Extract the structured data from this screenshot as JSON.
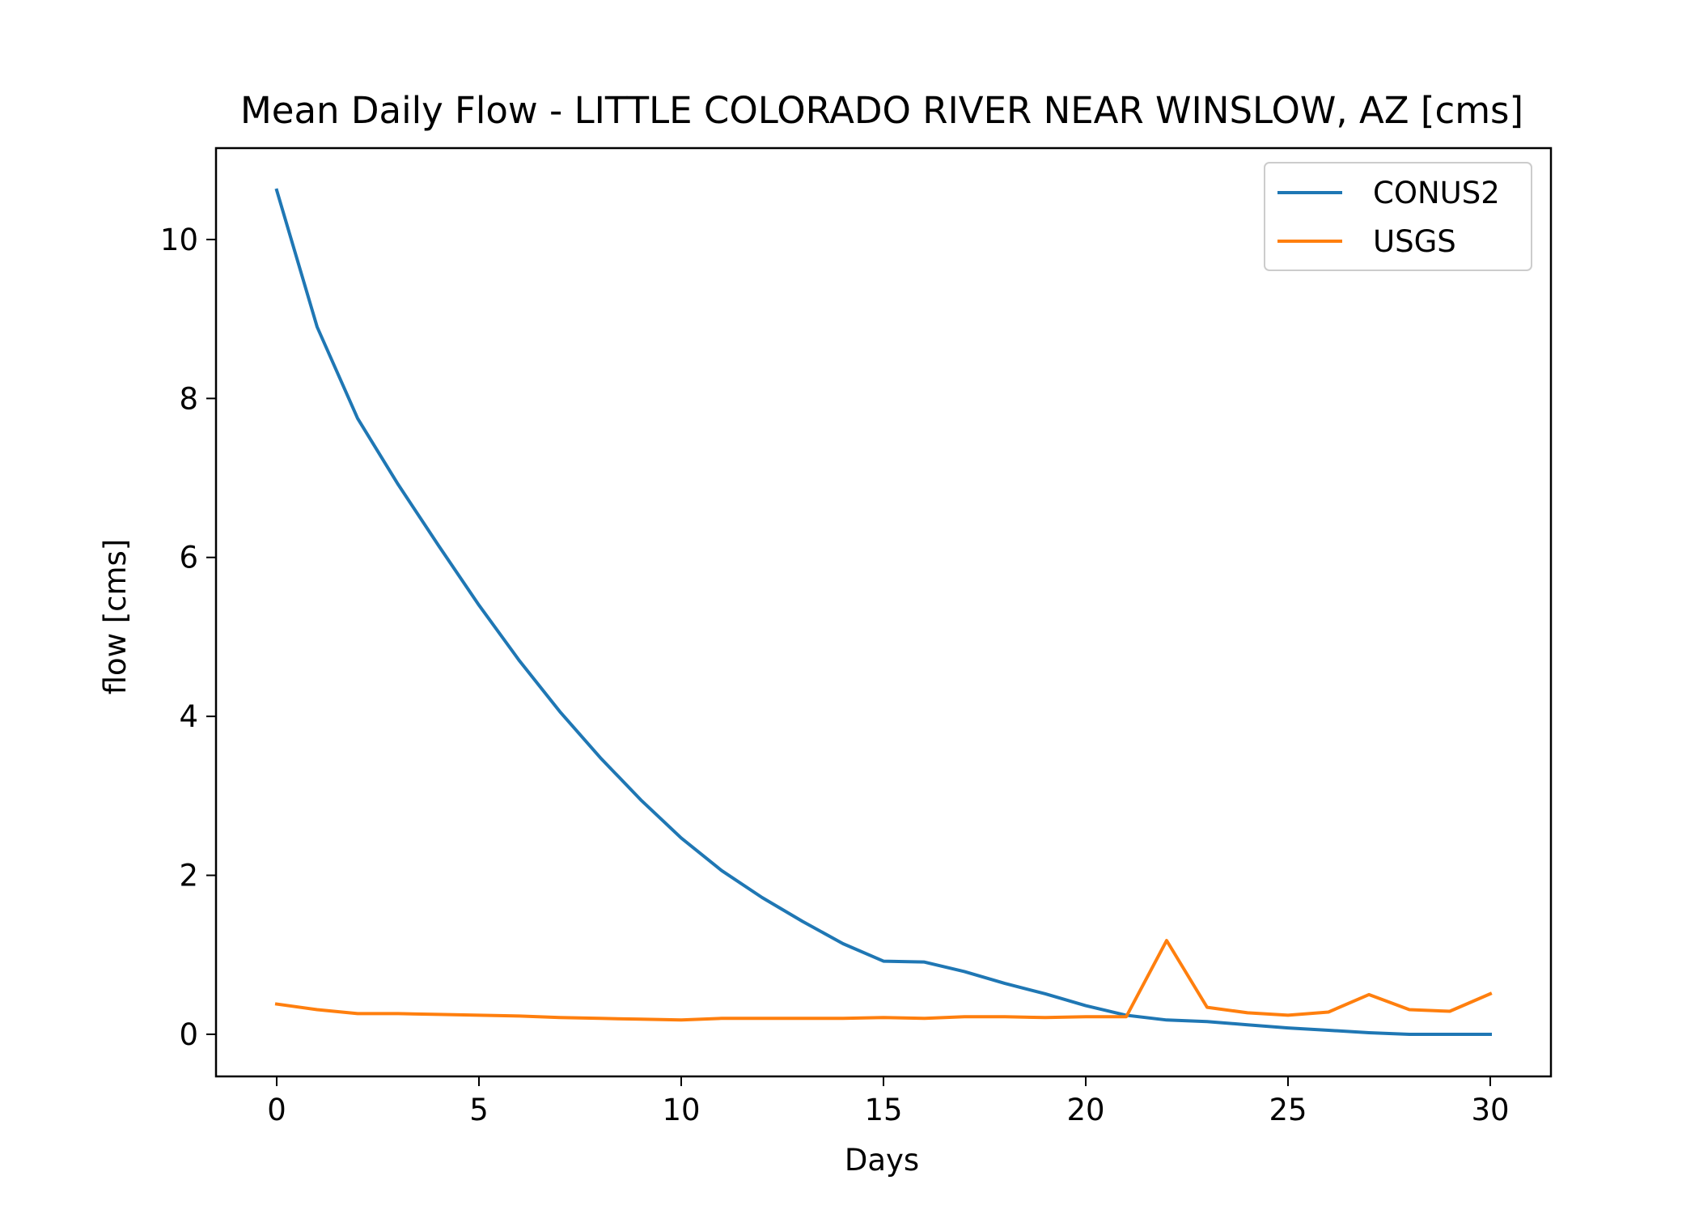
{
  "chart_data": {
    "type": "line",
    "title": "Mean Daily Flow - LITTLE COLORADO RIVER NEAR WINSLOW, AZ [cms]",
    "xlabel": "Days",
    "ylabel": "flow [cms]",
    "xlim": [
      -1.5,
      31.5
    ],
    "ylim": [
      -0.53,
      11.15
    ],
    "xticks": [
      0,
      5,
      10,
      15,
      20,
      25,
      30
    ],
    "yticks": [
      0,
      2,
      4,
      6,
      8,
      10
    ],
    "grid": false,
    "legend_position": "upper right",
    "x": [
      0,
      1,
      2,
      3,
      4,
      5,
      6,
      7,
      8,
      9,
      10,
      11,
      12,
      13,
      14,
      15,
      16,
      17,
      18,
      19,
      20,
      21,
      22,
      23,
      24,
      25,
      26,
      27,
      28,
      29,
      30
    ],
    "series": [
      {
        "name": "CONUS2",
        "color": "#1f77b4",
        "values": [
          10.62,
          8.9,
          7.75,
          6.92,
          6.15,
          5.4,
          4.7,
          4.06,
          3.48,
          2.95,
          2.47,
          2.06,
          1.72,
          1.42,
          1.14,
          0.92,
          0.91,
          0.79,
          0.64,
          0.51,
          0.36,
          0.24,
          0.18,
          0.16,
          0.12,
          0.08,
          0.05,
          0.02,
          0.0,
          0.0,
          0.0
        ]
      },
      {
        "name": "USGS",
        "color": "#ff7f0e",
        "values": [
          0.38,
          0.31,
          0.26,
          0.26,
          0.25,
          0.24,
          0.23,
          0.21,
          0.2,
          0.19,
          0.18,
          0.2,
          0.2,
          0.2,
          0.2,
          0.21,
          0.2,
          0.22,
          0.22,
          0.21,
          0.22,
          0.22,
          1.18,
          0.34,
          0.27,
          0.24,
          0.28,
          0.5,
          0.31,
          0.29,
          0.51
        ]
      }
    ]
  }
}
